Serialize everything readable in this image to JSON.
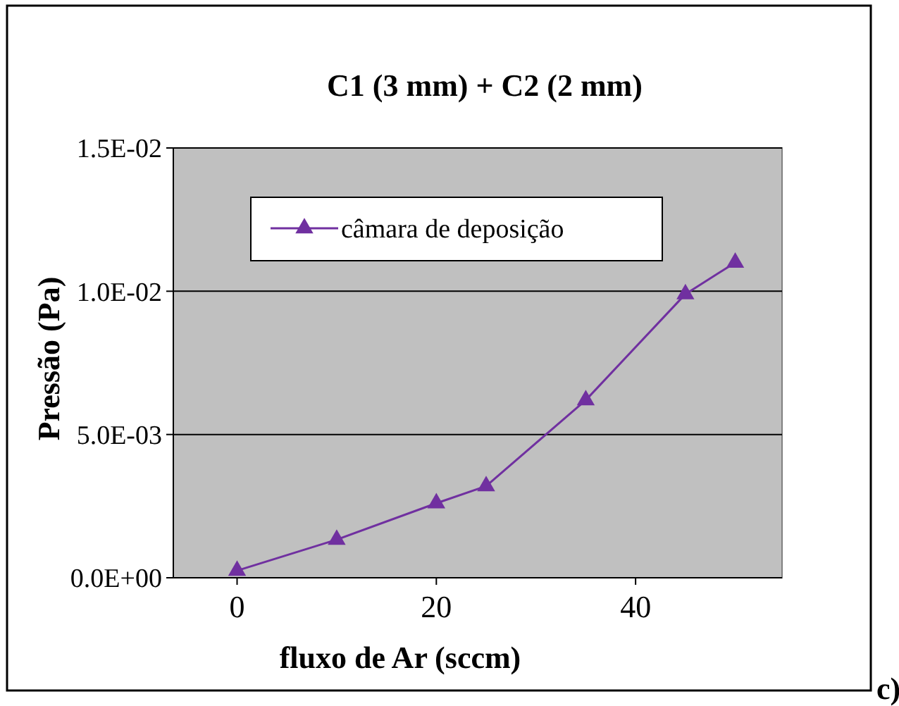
{
  "chart_data": {
    "type": "line",
    "title": "C1 (3 mm) + C2 (2 mm)",
    "xlabel": "fluxo de Ar (sccm)",
    "ylabel": "Pressão (Pa)",
    "x": [
      0,
      10,
      20,
      25,
      35,
      45,
      50
    ],
    "series": [
      {
        "name": "câmara de deposição",
        "color": "#7030a0",
        "values": [
          0.00025,
          0.00133,
          0.0026,
          0.0032,
          0.0062,
          0.0099,
          0.011
        ]
      }
    ],
    "xlim": [
      -6.4,
      54.7
    ],
    "xticks": [
      0,
      20,
      40
    ],
    "ylim": [
      0,
      0.015
    ],
    "yticks": [
      {
        "value": 0,
        "label": "0.0E+00"
      },
      {
        "value": 0.005,
        "label": "5.0E-03"
      },
      {
        "value": 0.01,
        "label": "1.0E-02"
      },
      {
        "value": 0.015,
        "label": "1.5E-02"
      }
    ],
    "grid": "y",
    "legend": "top left",
    "marker": "triangle",
    "line_style": "solid",
    "annotations": [
      "c)"
    ]
  }
}
